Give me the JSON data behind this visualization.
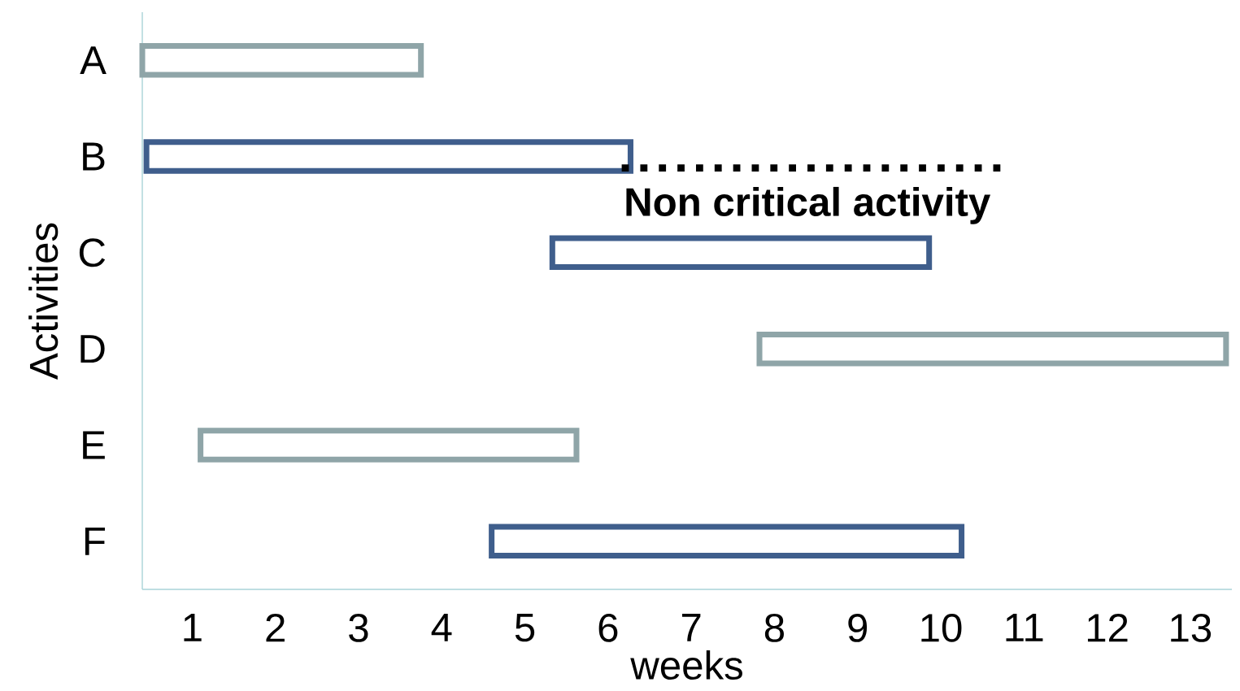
{
  "chart_data": {
    "type": "bar",
    "orientation": "horizontal",
    "xlabel": "weeks",
    "ylabel": "Activities",
    "categories": [
      "A",
      "B",
      "C",
      "D",
      "E",
      "F"
    ],
    "base": [
      0.4,
      0.45,
      5.33,
      7.82,
      1.1,
      4.6
    ],
    "values": [
      3.35,
      5.82,
      4.53,
      5.61,
      4.52,
      5.65
    ],
    "colors": [
      "#8fa5a8",
      "#3f5e8c",
      "#3f5e8c",
      "#8fa5a8",
      "#8fa5a8",
      "#3f5e8c"
    ],
    "xlim": [
      0.4,
      13.5
    ],
    "xticks": [
      1,
      2,
      3,
      4,
      5,
      6,
      7,
      8,
      9,
      10,
      11,
      12,
      13
    ],
    "grid": false,
    "annotations": [
      "Non critical activity"
    ]
  }
}
